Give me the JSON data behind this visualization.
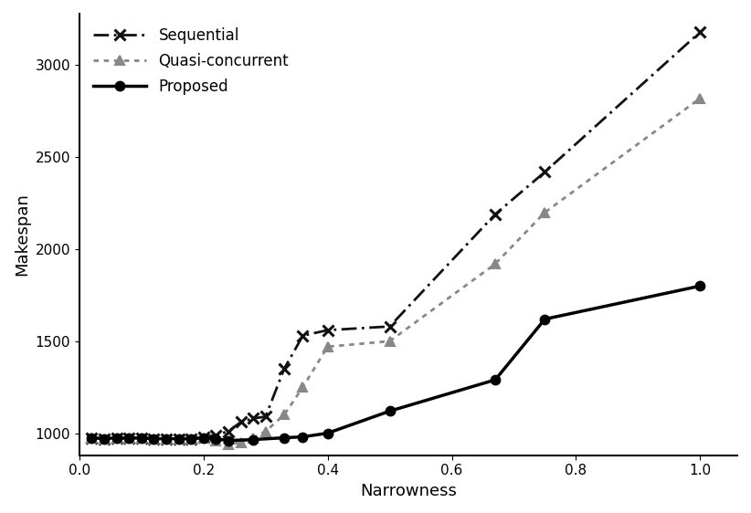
{
  "sequential_x": [
    0.02,
    0.04,
    0.06,
    0.08,
    0.1,
    0.12,
    0.14,
    0.16,
    0.18,
    0.2,
    0.22,
    0.24,
    0.26,
    0.28,
    0.3,
    0.33,
    0.36,
    0.4,
    0.5,
    0.67,
    0.75,
    1.0
  ],
  "sequential_y": [
    975,
    970,
    975,
    972,
    975,
    970,
    970,
    970,
    970,
    978,
    990,
    1010,
    1060,
    1080,
    1090,
    1350,
    1530,
    1560,
    1580,
    2190,
    2420,
    3180
  ],
  "quasi_x": [
    0.02,
    0.04,
    0.06,
    0.08,
    0.1,
    0.12,
    0.14,
    0.16,
    0.18,
    0.2,
    0.22,
    0.24,
    0.26,
    0.28,
    0.3,
    0.33,
    0.36,
    0.4,
    0.5,
    0.67,
    0.75,
    1.0
  ],
  "quasi_y": [
    975,
    970,
    975,
    972,
    975,
    970,
    970,
    970,
    970,
    972,
    960,
    940,
    950,
    975,
    1010,
    1100,
    1250,
    1470,
    1500,
    1920,
    2200,
    2820
  ],
  "proposed_x": [
    0.02,
    0.04,
    0.06,
    0.08,
    0.1,
    0.12,
    0.14,
    0.16,
    0.18,
    0.2,
    0.22,
    0.24,
    0.28,
    0.33,
    0.36,
    0.4,
    0.5,
    0.67,
    0.75,
    1.0
  ],
  "proposed_y": [
    975,
    970,
    975,
    972,
    975,
    970,
    970,
    970,
    970,
    975,
    970,
    960,
    965,
    975,
    980,
    1000,
    1120,
    1290,
    1620,
    1800
  ],
  "xlabel": "Narrowness",
  "ylabel": "Makespan",
  "xlim": [
    0.0,
    1.06
  ],
  "ylim": [
    880,
    3280
  ],
  "sequential_color": "#111111",
  "quasi_color": "#888888",
  "proposed_color": "#000000",
  "legend_labels": [
    "Sequential",
    "Quasi-concurrent",
    "Proposed"
  ],
  "yticks": [
    1000,
    1500,
    2000,
    2500,
    3000
  ],
  "xticks": [
    0.0,
    0.2,
    0.4,
    0.6,
    0.8,
    1.0
  ]
}
